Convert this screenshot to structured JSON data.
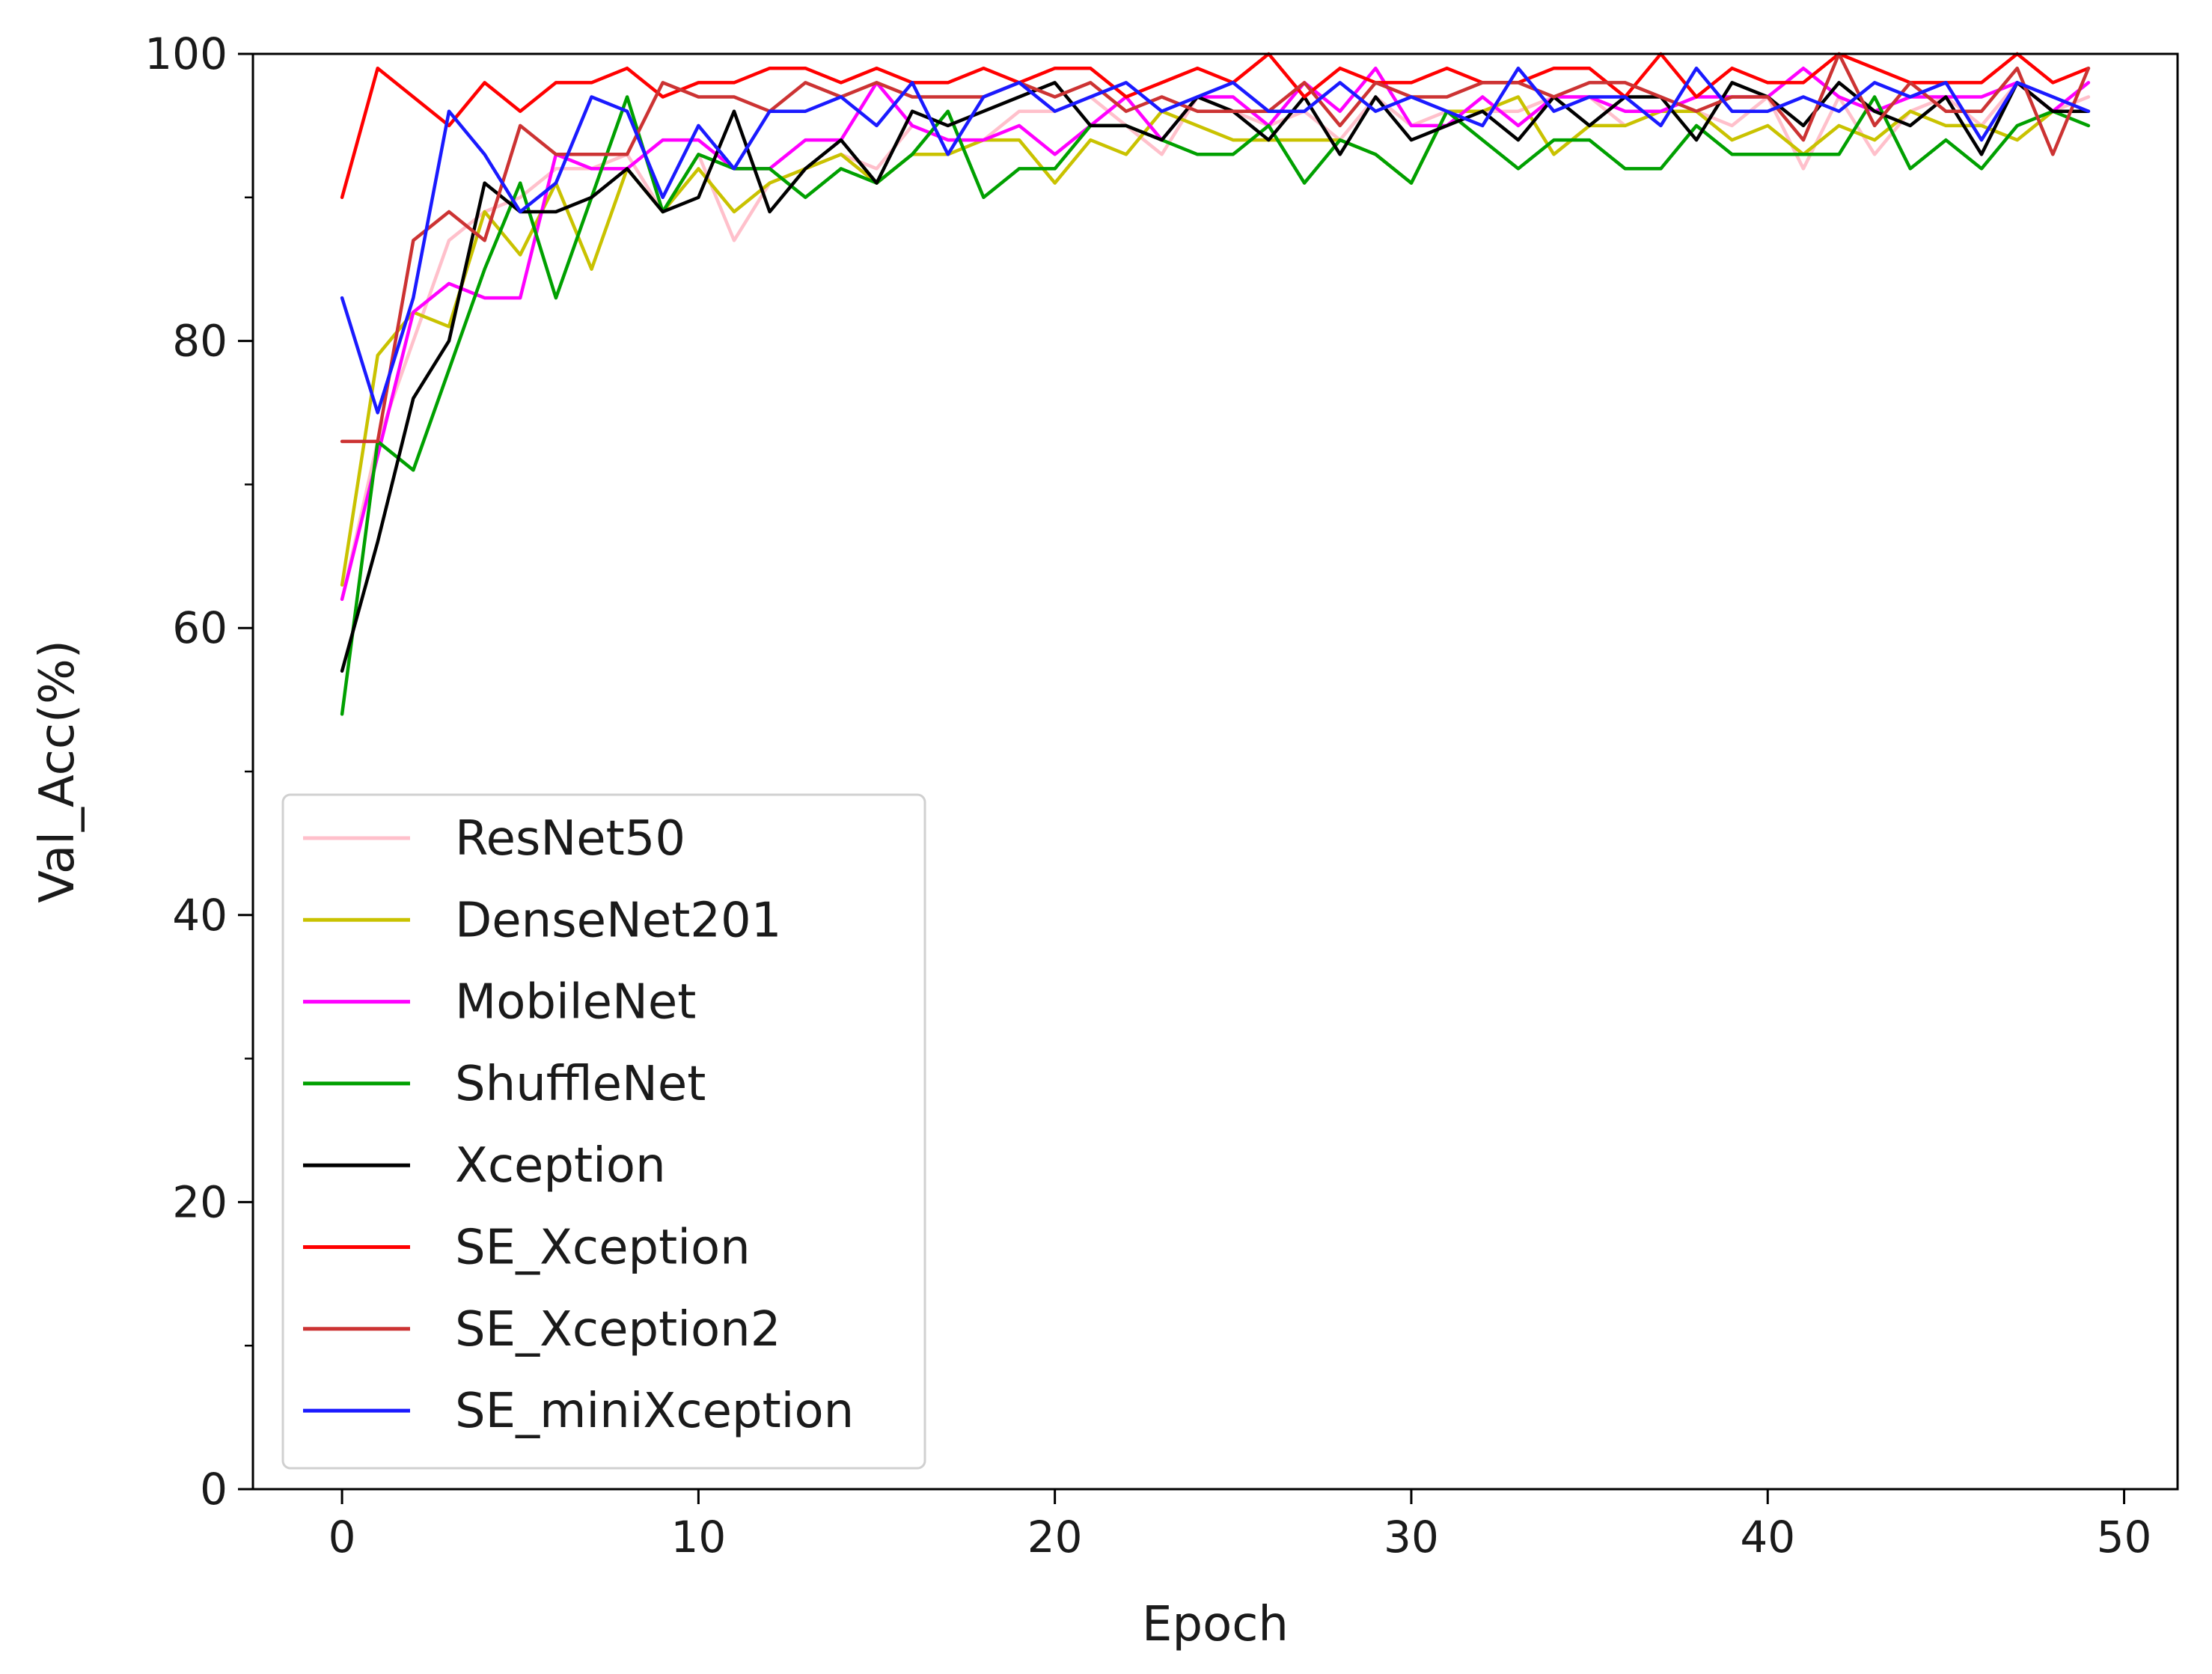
{
  "chart_data": {
    "type": "line",
    "title": "",
    "xlabel": "Epoch",
    "ylabel": "Val_Acc(%)",
    "xlim": [
      -2.5,
      51.5
    ],
    "ylim": [
      0,
      100
    ],
    "xticks": [
      0,
      10,
      20,
      30,
      40,
      50
    ],
    "yticks": [
      0,
      20,
      40,
      60,
      80,
      100
    ],
    "xtick_labels": [
      "0",
      "10",
      "20",
      "30",
      "40",
      "50"
    ],
    "ytick_labels": [
      "0",
      "20",
      "40",
      "60",
      "80",
      "100"
    ],
    "yminor_ticks": [
      10,
      30,
      50,
      70,
      90
    ],
    "grid": false,
    "legend_position": "lower-left",
    "x": [
      0,
      1,
      2,
      3,
      4,
      5,
      6,
      7,
      8,
      9,
      10,
      11,
      12,
      13,
      14,
      15,
      16,
      17,
      18,
      19,
      20,
      21,
      22,
      23,
      24,
      25,
      26,
      27,
      28,
      29,
      30,
      31,
      32,
      33,
      34,
      35,
      36,
      37,
      38,
      39,
      40,
      41,
      42,
      43,
      44,
      45,
      46,
      47,
      48,
      49
    ],
    "series": [
      {
        "name": "ResNet50",
        "color": "#ffc0cb",
        "values": [
          62,
          73,
          80,
          87,
          89,
          90,
          92,
          92,
          93,
          89,
          93,
          87,
          91,
          92,
          93,
          92,
          95,
          94,
          94,
          96,
          96,
          97,
          95,
          93,
          97,
          96,
          95,
          96,
          94,
          97,
          95,
          96,
          96,
          96,
          97,
          97,
          95,
          96,
          96,
          95,
          97,
          92,
          97,
          93,
          96,
          97,
          95,
          98,
          96,
          97
        ]
      },
      {
        "name": "DenseNet201",
        "color": "#c9c200",
        "values": [
          63,
          79,
          82,
          81,
          89,
          86,
          91,
          85,
          92,
          89,
          92,
          89,
          91,
          92,
          93,
          91,
          93,
          93,
          94,
          94,
          91,
          94,
          93,
          96,
          95,
          94,
          94,
          94,
          94,
          93,
          91,
          96,
          96,
          97,
          93,
          95,
          95,
          96,
          96,
          94,
          95,
          93,
          95,
          94,
          96,
          95,
          95,
          94,
          96,
          96
        ]
      },
      {
        "name": "MobileNet",
        "color": "#ff00ff",
        "values": [
          62,
          72,
          82,
          84,
          83,
          83,
          93,
          92,
          92,
          94,
          94,
          92,
          92,
          94,
          94,
          98,
          95,
          94,
          94,
          95,
          93,
          95,
          97,
          94,
          97,
          97,
          95,
          98,
          96,
          99,
          95,
          95,
          97,
          95,
          97,
          97,
          96,
          96,
          97,
          97,
          97,
          99,
          97,
          96,
          97,
          97,
          97,
          98,
          96,
          98
        ]
      },
      {
        "name": "ShuffleNet",
        "color": "#00a000",
        "values": [
          54,
          73,
          71,
          78,
          85,
          91,
          83,
          90,
          97,
          89,
          93,
          92,
          92,
          90,
          92,
          91,
          93,
          96,
          90,
          92,
          92,
          95,
          95,
          94,
          93,
          93,
          95,
          91,
          94,
          93,
          91,
          96,
          94,
          92,
          94,
          94,
          92,
          92,
          95,
          93,
          93,
          93,
          93,
          97,
          92,
          94,
          92,
          95,
          96,
          95
        ]
      },
      {
        "name": "Xception",
        "color": "#000000",
        "values": [
          57,
          66,
          76,
          80,
          91,
          89,
          89,
          90,
          92,
          89,
          90,
          96,
          89,
          92,
          94,
          91,
          96,
          95,
          96,
          97,
          98,
          95,
          95,
          94,
          97,
          96,
          94,
          97,
          93,
          97,
          94,
          95,
          96,
          94,
          97,
          95,
          97,
          97,
          94,
          98,
          97,
          95,
          98,
          96,
          95,
          97,
          93,
          98,
          96,
          96
        ]
      },
      {
        "name": "SE_Xception",
        "color": "#ff0000",
        "values": [
          90,
          99,
          97,
          95,
          98,
          96,
          98,
          98,
          99,
          97,
          98,
          98,
          99,
          99,
          98,
          99,
          98,
          98,
          99,
          98,
          99,
          99,
          97,
          98,
          99,
          98,
          100,
          97,
          99,
          98,
          98,
          99,
          98,
          98,
          99,
          99,
          97,
          100,
          97,
          99,
          98,
          98,
          100,
          99,
          98,
          98,
          98,
          100,
          98,
          99
        ]
      },
      {
        "name": "SE_Xception2",
        "color": "#cc3333",
        "values": [
          73,
          73,
          87,
          89,
          87,
          95,
          93,
          93,
          93,
          98,
          97,
          97,
          96,
          98,
          97,
          98,
          97,
          97,
          97,
          98,
          97,
          98,
          96,
          97,
          96,
          96,
          96,
          98,
          95,
          98,
          97,
          97,
          98,
          98,
          97,
          98,
          98,
          97,
          96,
          97,
          97,
          94,
          100,
          95,
          98,
          96,
          96,
          99,
          93,
          99
        ]
      },
      {
        "name": "SE_miniXception",
        "color": "#1a1aff",
        "values": [
          83,
          75,
          83,
          96,
          93,
          89,
          91,
          97,
          96,
          90,
          95,
          92,
          96,
          96,
          97,
          95,
          98,
          93,
          97,
          98,
          96,
          97,
          98,
          96,
          97,
          98,
          96,
          96,
          98,
          96,
          97,
          96,
          95,
          99,
          96,
          97,
          97,
          95,
          99,
          96,
          96,
          97,
          96,
          98,
          97,
          98,
          94,
          98,
          97,
          96
        ]
      }
    ]
  }
}
